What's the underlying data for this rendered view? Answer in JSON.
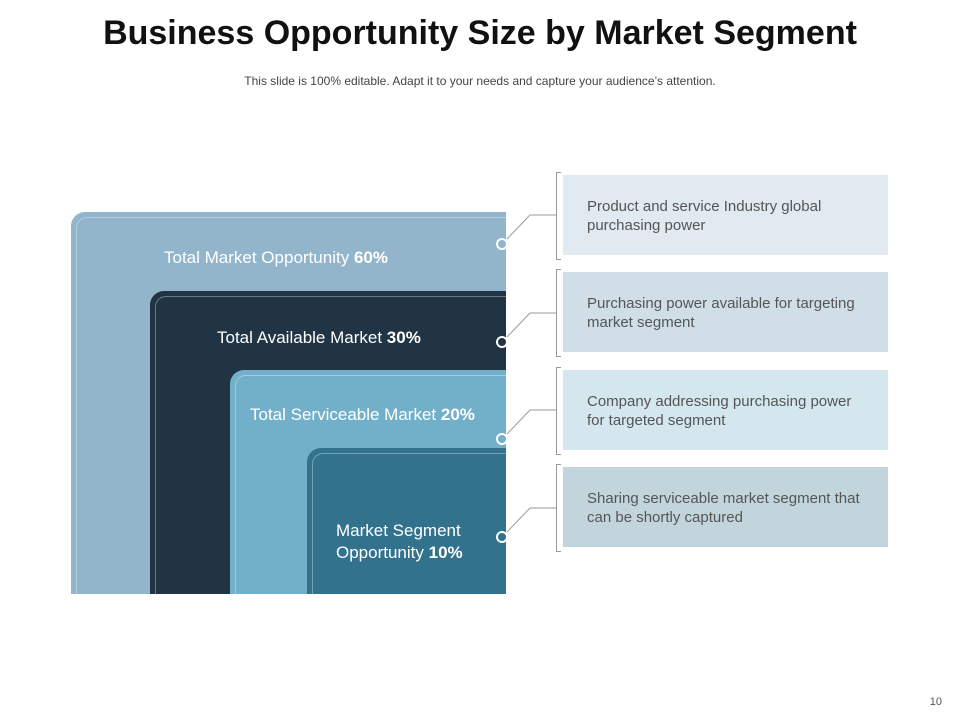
{
  "title": "Business Opportunity Size by Market Segment",
  "subtitle": "This slide is 100% editable. Adapt it to your needs and capture your audience’s attention.",
  "segments": [
    {
      "name": "Total Market Opportunity",
      "percent": "60%",
      "color": "#93b5cb",
      "description": "Product and service Industry  global purchasing power",
      "panel_color": "#e1e9f1"
    },
    {
      "name": "Total Available Market",
      "percent": "30%",
      "color": "#203444",
      "description": "Purchasing power available for targeting market segment",
      "panel_color": "#d0dee8"
    },
    {
      "name": "Total Serviceable Market",
      "percent": "20%",
      "color": "#72afc9",
      "description": "Company addressing purchasing power for targeted segment",
      "panel_color": "#d5e7ee"
    },
    {
      "name": "Market Segment Opportunity",
      "percent": "10%",
      "color": "#32728c",
      "description": "Sharing serviceable market segment that can be shortly captured",
      "panel_color": "#c3d5dc"
    }
  ],
  "page_number": "10"
}
